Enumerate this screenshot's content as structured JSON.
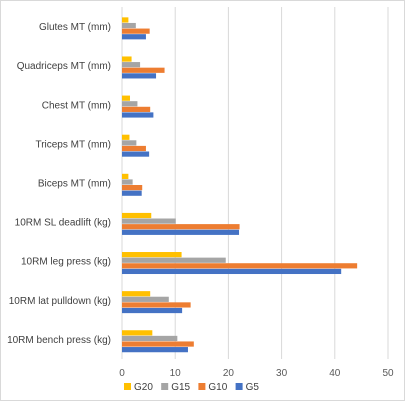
{
  "chart_data": {
    "type": "bar",
    "orientation": "horizontal",
    "categories": [
      "Glutes MT (mm)",
      "Quadriceps MT (mm)",
      "Chest MT (mm)",
      "Triceps MT (mm)",
      "Biceps MT (mm)",
      "10RM SL deadlift (kg)",
      "10RM leg press (kg)",
      "10RM lat pulldown (kg)",
      "10RM bench press (kg)"
    ],
    "series": [
      {
        "name": "G20",
        "color": "#ffc000",
        "values": [
          1.2,
          1.8,
          1.5,
          1.4,
          1.2,
          5.5,
          11.2,
          5.3,
          5.7
        ]
      },
      {
        "name": "G15",
        "color": "#a5a5a5",
        "values": [
          2.6,
          3.4,
          2.9,
          2.7,
          2.0,
          10.1,
          19.5,
          8.8,
          10.4
        ]
      },
      {
        "name": "G10",
        "color": "#ed7d31",
        "values": [
          5.2,
          8.0,
          5.3,
          4.5,
          3.8,
          22.1,
          44.2,
          12.9,
          13.5
        ]
      },
      {
        "name": "G5",
        "color": "#4472c4",
        "values": [
          4.5,
          6.4,
          5.9,
          5.1,
          3.7,
          22.0,
          41.2,
          11.3,
          12.4
        ]
      }
    ],
    "xlim": [
      0,
      50
    ],
    "xticks": [
      "0",
      "10",
      "20",
      "30",
      "40",
      "50"
    ],
    "grid": true,
    "legend_position": "bottom",
    "title": "",
    "xlabel": "",
    "ylabel": ""
  }
}
